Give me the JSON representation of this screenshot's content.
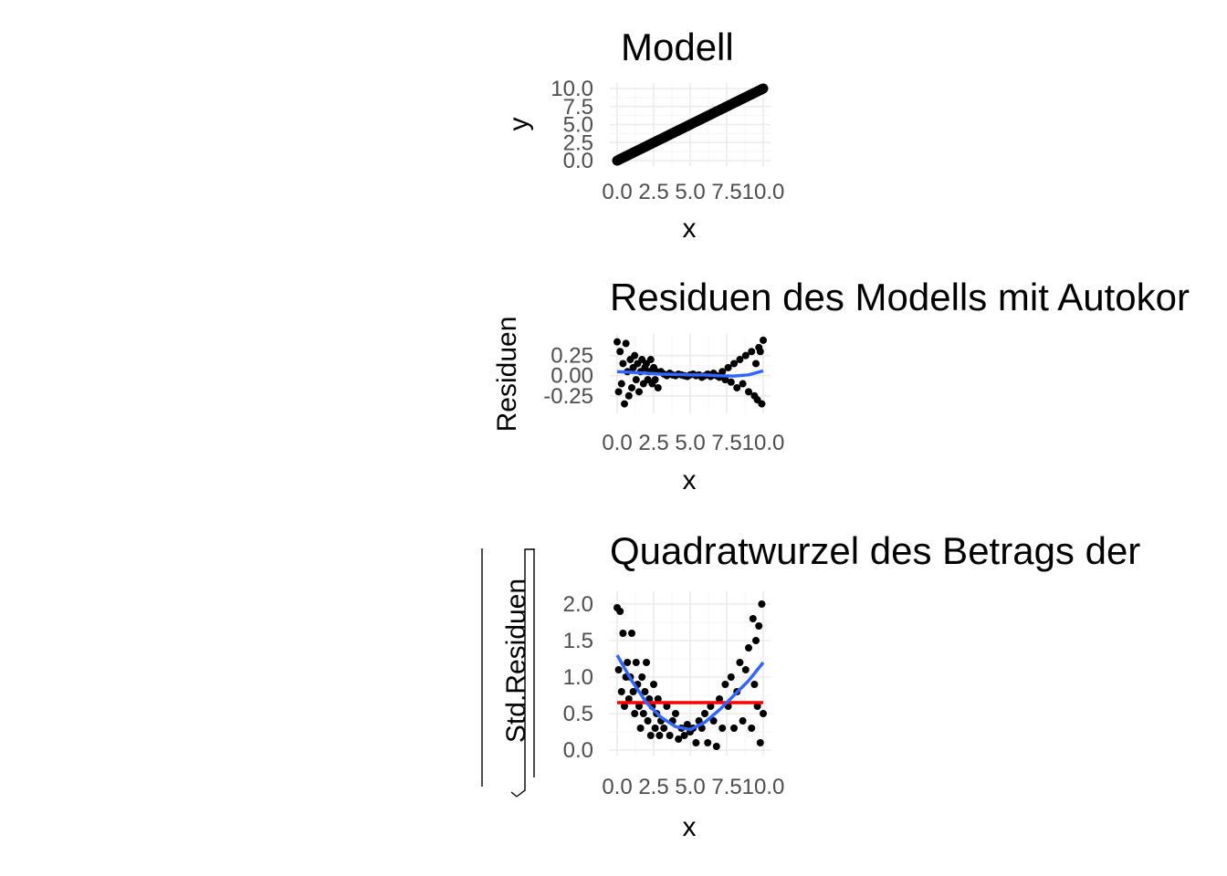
{
  "chart_data": [
    {
      "type": "scatter",
      "title": "Modell",
      "xlabel": "x",
      "ylabel": "y",
      "xlim": [
        0,
        10
      ],
      "ylim": [
        0,
        10
      ],
      "xticks": [
        "0.0",
        "2.5",
        "5.0",
        "7.5",
        "10.0"
      ],
      "yticks": [
        "0.0",
        "2.5",
        "5.0",
        "7.5",
        "10.0"
      ],
      "grid": true,
      "series": [
        {
          "points": [
            [
              0,
              0.0
            ],
            [
              0.2,
              0.2
            ],
            [
              0.4,
              0.35
            ],
            [
              0.6,
              0.6
            ],
            [
              0.8,
              0.8
            ],
            [
              1.0,
              1.0
            ],
            [
              1.2,
              1.25
            ],
            [
              1.4,
              1.4
            ],
            [
              1.6,
              1.6
            ],
            [
              1.8,
              1.8
            ],
            [
              2.0,
              2.0
            ],
            [
              2.2,
              2.2
            ],
            [
              2.4,
              2.4
            ],
            [
              2.6,
              2.6
            ],
            [
              2.8,
              2.8
            ],
            [
              3.0,
              3.0
            ],
            [
              3.2,
              3.2
            ],
            [
              3.4,
              3.4
            ],
            [
              3.6,
              3.6
            ],
            [
              3.8,
              3.8
            ],
            [
              4.0,
              4.0
            ],
            [
              4.2,
              4.2
            ],
            [
              4.4,
              4.4
            ],
            [
              4.6,
              4.6
            ],
            [
              4.8,
              4.8
            ],
            [
              5.0,
              5.0
            ],
            [
              5.2,
              5.2
            ],
            [
              5.4,
              5.4
            ],
            [
              5.6,
              5.6
            ],
            [
              5.8,
              5.8
            ],
            [
              6.0,
              6.0
            ],
            [
              6.2,
              6.2
            ],
            [
              6.4,
              6.4
            ],
            [
              6.6,
              6.6
            ],
            [
              6.8,
              6.8
            ],
            [
              7.0,
              7.0
            ],
            [
              7.2,
              7.2
            ],
            [
              7.4,
              7.4
            ],
            [
              7.6,
              7.6
            ],
            [
              7.8,
              7.8
            ],
            [
              8.0,
              8.0
            ],
            [
              8.2,
              8.2
            ],
            [
              8.4,
              8.4
            ],
            [
              8.6,
              8.6
            ],
            [
              8.8,
              8.8
            ],
            [
              9.0,
              9.0
            ],
            [
              9.2,
              9.2
            ],
            [
              9.4,
              9.4
            ],
            [
              9.6,
              9.6
            ],
            [
              9.8,
              9.85
            ],
            [
              10.0,
              10.0
            ]
          ]
        }
      ],
      "color_points": "#000000"
    },
    {
      "type": "scatter",
      "title": "Residuen des Modells mit Autokor",
      "xlabel": "x",
      "ylabel": "Residuen",
      "xlim": [
        0,
        10
      ],
      "ylim": [
        -0.4,
        0.45
      ],
      "xticks": [
        "0.0",
        "2.5",
        "5.0",
        "7.5",
        "10.0"
      ],
      "yticks": [
        "-0.25",
        "0.00",
        "0.25"
      ],
      "ytick_values": [
        -0.25,
        0,
        0.25
      ],
      "grid": true,
      "points": [
        [
          0.0,
          0.42
        ],
        [
          0.1,
          -0.2
        ],
        [
          0.2,
          0.3
        ],
        [
          0.3,
          -0.1
        ],
        [
          0.4,
          0.15
        ],
        [
          0.5,
          -0.35
        ],
        [
          0.6,
          0.4
        ],
        [
          0.7,
          0.05
        ],
        [
          0.8,
          -0.25
        ],
        [
          0.9,
          0.2
        ],
        [
          1.0,
          -0.15
        ],
        [
          1.1,
          0.1
        ],
        [
          1.2,
          0.25
        ],
        [
          1.3,
          -0.05
        ],
        [
          1.4,
          0.15
        ],
        [
          1.5,
          -0.2
        ],
        [
          1.6,
          0.05
        ],
        [
          1.7,
          0.2
        ],
        [
          1.8,
          -0.1
        ],
        [
          1.9,
          0.1
        ],
        [
          2.0,
          0.15
        ],
        [
          2.1,
          -0.05
        ],
        [
          2.2,
          0.05
        ],
        [
          2.3,
          0.2
        ],
        [
          2.4,
          -0.1
        ],
        [
          2.5,
          0.1
        ],
        [
          2.6,
          -0.05
        ],
        [
          2.7,
          0.05
        ],
        [
          2.8,
          -0.15
        ],
        [
          3.0,
          0.05
        ],
        [
          3.2,
          0.02
        ],
        [
          3.4,
          0.0
        ],
        [
          3.6,
          0.03
        ],
        [
          3.8,
          0.01
        ],
        [
          4.0,
          0.0
        ],
        [
          4.2,
          0.02
        ],
        [
          4.4,
          0.01
        ],
        [
          4.6,
          0.0
        ],
        [
          4.8,
          -0.01
        ],
        [
          5.0,
          0.01
        ],
        [
          5.2,
          0.02
        ],
        [
          5.4,
          0.0
        ],
        [
          5.6,
          0.01
        ],
        [
          5.8,
          -0.02
        ],
        [
          6.0,
          0.0
        ],
        [
          6.2,
          0.02
        ],
        [
          6.4,
          -0.01
        ],
        [
          6.6,
          0.03
        ],
        [
          6.8,
          0.0
        ],
        [
          7.0,
          -0.02
        ],
        [
          7.2,
          0.05
        ],
        [
          7.4,
          -0.05
        ],
        [
          7.6,
          0.1
        ],
        [
          7.8,
          -0.08
        ],
        [
          8.0,
          0.15
        ],
        [
          8.2,
          -0.15
        ],
        [
          8.4,
          0.2
        ],
        [
          8.6,
          -0.1
        ],
        [
          8.8,
          0.25
        ],
        [
          9.0,
          -0.2
        ],
        [
          9.2,
          0.3
        ],
        [
          9.4,
          -0.25
        ],
        [
          9.5,
          0.15
        ],
        [
          9.6,
          -0.3
        ],
        [
          9.7,
          0.35
        ],
        [
          9.8,
          0.3
        ],
        [
          9.9,
          -0.35
        ],
        [
          10.0,
          0.44
        ]
      ],
      "smooth": [
        [
          0,
          0.05
        ],
        [
          1,
          0.04
        ],
        [
          2,
          0.03
        ],
        [
          3,
          0.02
        ],
        [
          4,
          0.015
        ],
        [
          5,
          0.01
        ],
        [
          6,
          0.01
        ],
        [
          7,
          0.0
        ],
        [
          8,
          -0.005
        ],
        [
          9,
          0.01
        ],
        [
          10,
          0.06
        ]
      ],
      "color_points": "#000000",
      "color_smooth": "#3366FF"
    },
    {
      "type": "scatter",
      "title": "Quadratwurzel des Betrags der",
      "xlabel": "x",
      "ylabel": "Std.Residuen",
      "ylabel_sqrt": true,
      "xlim": [
        0,
        10
      ],
      "ylim": [
        0,
        2.1
      ],
      "xticks": [
        "0.0",
        "2.5",
        "5.0",
        "7.5",
        "10.0"
      ],
      "yticks": [
        "0.0",
        "0.5",
        "1.0",
        "1.5",
        "2.0"
      ],
      "ytick_values": [
        0,
        0.5,
        1.0,
        1.5,
        2.0
      ],
      "grid": true,
      "points": [
        [
          0.0,
          1.95
        ],
        [
          0.2,
          1.9
        ],
        [
          0.1,
          1.1
        ],
        [
          0.3,
          0.8
        ],
        [
          0.4,
          1.6
        ],
        [
          0.5,
          0.6
        ],
        [
          0.6,
          1.0
        ],
        [
          0.7,
          1.2
        ],
        [
          0.8,
          0.7
        ],
        [
          0.9,
          1.0
        ],
        [
          1.0,
          1.6
        ],
        [
          1.1,
          0.8
        ],
        [
          1.2,
          0.5
        ],
        [
          1.3,
          1.2
        ],
        [
          1.4,
          0.9
        ],
        [
          1.5,
          0.6
        ],
        [
          1.6,
          0.3
        ],
        [
          1.7,
          1.0
        ],
        [
          1.8,
          0.5
        ],
        [
          1.9,
          0.8
        ],
        [
          2.0,
          1.2
        ],
        [
          2.1,
          0.4
        ],
        [
          2.2,
          0.7
        ],
        [
          2.3,
          0.2
        ],
        [
          2.4,
          0.6
        ],
        [
          2.5,
          0.9
        ],
        [
          2.6,
          0.3
        ],
        [
          2.7,
          0.5
        ],
        [
          2.8,
          0.7
        ],
        [
          2.9,
          0.2
        ],
        [
          3.0,
          0.4
        ],
        [
          3.2,
          0.3
        ],
        [
          3.4,
          0.6
        ],
        [
          3.6,
          0.2
        ],
        [
          3.8,
          0.4
        ],
        [
          4.0,
          0.5
        ],
        [
          4.2,
          0.15
        ],
        [
          4.4,
          0.3
        ],
        [
          4.6,
          0.2
        ],
        [
          4.8,
          0.35
        ],
        [
          5.0,
          0.25
        ],
        [
          5.2,
          0.3
        ],
        [
          5.4,
          0.1
        ],
        [
          5.6,
          0.4
        ],
        [
          5.8,
          0.3
        ],
        [
          6.0,
          0.5
        ],
        [
          6.2,
          0.1
        ],
        [
          6.4,
          0.6
        ],
        [
          6.6,
          0.4
        ],
        [
          6.8,
          0.05
        ],
        [
          7.0,
          0.7
        ],
        [
          7.2,
          0.3
        ],
        [
          7.4,
          0.9
        ],
        [
          7.6,
          0.6
        ],
        [
          7.8,
          1.0
        ],
        [
          8.0,
          0.3
        ],
        [
          8.2,
          0.8
        ],
        [
          8.4,
          1.2
        ],
        [
          8.6,
          0.4
        ],
        [
          8.8,
          1.1
        ],
        [
          9.0,
          1.4
        ],
        [
          9.2,
          0.3
        ],
        [
          9.3,
          1.8
        ],
        [
          9.4,
          0.9
        ],
        [
          9.5,
          1.5
        ],
        [
          9.6,
          0.6
        ],
        [
          9.7,
          1.7
        ],
        [
          9.8,
          0.1
        ],
        [
          9.9,
          2.0
        ],
        [
          10.0,
          0.5
        ]
      ],
      "smooth": [
        [
          0,
          1.3
        ],
        [
          1,
          0.95
        ],
        [
          2,
          0.65
        ],
        [
          3,
          0.45
        ],
        [
          4,
          0.32
        ],
        [
          5,
          0.28
        ],
        [
          6,
          0.38
        ],
        [
          7,
          0.55
        ],
        [
          8,
          0.75
        ],
        [
          9,
          0.95
        ],
        [
          10,
          1.2
        ]
      ],
      "reference_line": 0.65,
      "color_points": "#000000",
      "color_smooth": "#3366FF",
      "color_reference": "#FF0000"
    }
  ]
}
